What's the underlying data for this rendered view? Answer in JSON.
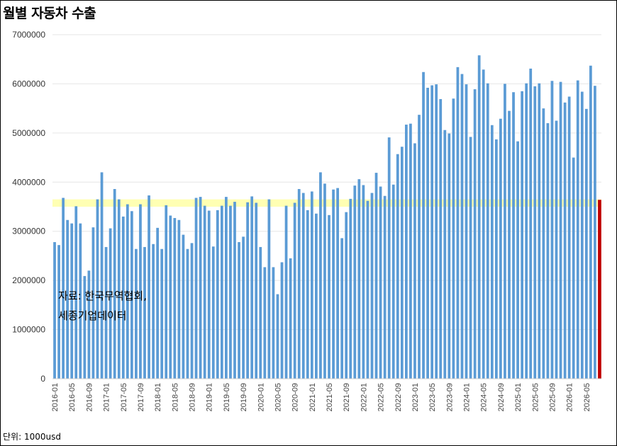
{
  "title": "월별 자동차 수출",
  "source_line1": "자료: 한국무역협회,",
  "source_line2": "세종기업데이터",
  "unit": "단위: 1000usd",
  "colors": {
    "bar": "#5b9bd5",
    "last_bar": "#c00000",
    "band": "#ffff99"
  },
  "chart_data": {
    "type": "bar",
    "title": "월별 자동차 수출",
    "xlabel": "",
    "ylabel": "",
    "ylim": [
      0,
      7000000
    ],
    "yticks": [
      0,
      1000000,
      2000000,
      3000000,
      4000000,
      5000000,
      6000000,
      7000000
    ],
    "tick_labels": [
      "2016-01",
      "2016-05",
      "2016-09",
      "2017-01",
      "2017-05",
      "2017-09",
      "2018-01",
      "2018-05",
      "2018-09",
      "2019-01",
      "2019-05",
      "2019-09",
      "2020-01",
      "2020-05",
      "2020-09",
      "2021-01",
      "2021-05",
      "2021-09",
      "2022-01",
      "2022-05",
      "2022-09",
      "2023-01",
      "2023-05",
      "2023-09",
      "2024-01",
      "2024-05",
      "2024-09",
      "2025-01",
      "2025-05",
      "2025-09",
      "2026-01",
      "2026-05"
    ],
    "highlight_band": [
      3500000,
      3650000
    ],
    "highlight_last_bar": true,
    "grid": "horizontal",
    "categories": [
      "2016-01",
      "2016-02",
      "2016-03",
      "2016-04",
      "2016-05",
      "2016-06",
      "2016-07",
      "2016-08",
      "2016-09",
      "2016-10",
      "2016-11",
      "2016-12",
      "2017-01",
      "2017-02",
      "2017-03",
      "2017-04",
      "2017-05",
      "2017-06",
      "2017-07",
      "2017-08",
      "2017-09",
      "2017-10",
      "2017-11",
      "2017-12",
      "2018-01",
      "2018-02",
      "2018-03",
      "2018-04",
      "2018-05",
      "2018-06",
      "2018-07",
      "2018-08",
      "2018-09",
      "2018-10",
      "2018-11",
      "2018-12",
      "2019-01",
      "2019-02",
      "2019-03",
      "2019-04",
      "2019-05",
      "2019-06",
      "2019-07",
      "2019-08",
      "2019-09",
      "2019-10",
      "2019-11",
      "2019-12",
      "2020-01",
      "2020-02",
      "2020-03",
      "2020-04",
      "2020-05",
      "2020-06",
      "2020-07",
      "2020-08",
      "2020-09",
      "2020-10",
      "2020-11",
      "2020-12",
      "2021-01",
      "2021-02",
      "2021-03",
      "2021-04",
      "2021-05",
      "2021-06",
      "2021-07",
      "2021-08",
      "2021-09",
      "2021-10",
      "2021-11",
      "2021-12",
      "2022-01",
      "2022-02",
      "2022-03",
      "2022-04",
      "2022-05",
      "2022-06",
      "2022-07",
      "2022-08",
      "2022-09",
      "2022-10",
      "2022-11",
      "2022-12",
      "2023-01",
      "2023-02",
      "2023-03",
      "2023-04",
      "2023-05",
      "2023-06",
      "2023-07",
      "2023-08",
      "2023-09",
      "2023-10",
      "2023-11",
      "2023-12",
      "2024-01",
      "2024-02",
      "2024-03",
      "2024-04",
      "2024-05",
      "2024-06",
      "2024-07",
      "2024-08",
      "2024-09",
      "2024-10",
      "2024-11",
      "2024-12",
      "2025-01",
      "2025-02",
      "2025-03",
      "2025-04",
      "2025-05",
      "2025-06",
      "2025-07",
      "2025-08",
      "2025-09",
      "2025-10",
      "2025-11",
      "2025-12",
      "2026-01",
      "2026-02",
      "2026-03",
      "2026-04",
      "2026-05",
      "2026-06",
      "2026-07",
      "2026-08"
    ],
    "values": [
      2780000,
      2720000,
      3680000,
      3230000,
      3160000,
      3510000,
      3160000,
      2090000,
      2200000,
      3080000,
      3650000,
      4200000,
      2680000,
      3060000,
      3860000,
      3650000,
      3300000,
      3550000,
      3410000,
      2640000,
      3550000,
      2680000,
      3730000,
      2740000,
      3070000,
      2640000,
      3530000,
      3320000,
      3270000,
      3230000,
      2930000,
      2640000,
      2760000,
      3680000,
      3700000,
      3520000,
      3420000,
      2690000,
      3430000,
      3520000,
      3700000,
      3520000,
      3600000,
      2780000,
      2890000,
      3590000,
      3710000,
      3580000,
      2680000,
      2270000,
      3650000,
      2270000,
      1720000,
      2370000,
      3520000,
      2450000,
      3580000,
      3860000,
      3780000,
      3430000,
      3810000,
      3360000,
      4200000,
      3970000,
      3330000,
      3850000,
      3880000,
      2860000,
      3390000,
      3660000,
      3930000,
      4060000,
      3940000,
      3620000,
      3780000,
      4190000,
      3910000,
      3720000,
      4910000,
      3950000,
      4570000,
      4720000,
      5170000,
      5190000,
      4790000,
      5370000,
      6240000,
      5920000,
      5970000,
      5990000,
      5690000,
      5060000,
      4990000,
      5700000,
      6340000,
      6200000,
      5990000,
      4920000,
      5890000,
      6580000,
      6290000,
      6010000,
      5160000,
      4870000,
      5290000,
      6000000,
      5450000,
      5830000,
      4830000,
      5850000,
      6010000,
      6310000,
      5950000,
      6010000,
      5500000,
      5200000,
      6060000,
      5250000,
      6040000,
      5620000,
      5740000,
      4500000,
      6070000,
      5840000,
      5490000,
      6370000,
      5960000,
      3640000
    ]
  }
}
